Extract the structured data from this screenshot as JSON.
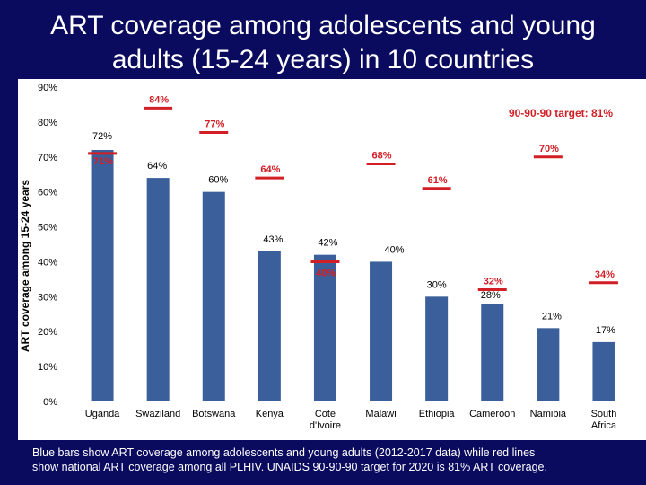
{
  "title_line1": "ART coverage among adolescents and young",
  "title_line2": "adults (15-24 years) in 10 countries",
  "caption_line1": "Blue bars show ART coverage among adolescents and young adults (2012-2017 data) while red lines",
  "caption_line2": "show national ART coverage among all PLHIV. UNAIDS 90-90-90 target for 2020 is 81% ART coverage.",
  "colors": {
    "bar": "#3a5f9a",
    "line": "#d21f26",
    "background": "#0a0a5e"
  },
  "chart_data": {
    "type": "bar",
    "ylabel": "ART coverage among 15-24 years",
    "ylim": [
      0,
      90
    ],
    "yticks": [
      0,
      10,
      20,
      30,
      40,
      50,
      60,
      70,
      80,
      90
    ],
    "categories": [
      "Uganda",
      "Swaziland",
      "Botswana",
      "Kenya",
      "Cote d'Ivoire",
      "Malawi",
      "Ethiopia",
      "Cameroon",
      "Namibia",
      "South Africa"
    ],
    "series": [
      {
        "values": [
          72,
          64,
          60,
          43,
          42,
          40,
          30,
          28,
          21,
          17
        ]
      },
      {
        "values": [
          71,
          84,
          77,
          64,
          40,
          68,
          61,
          32,
          70,
          34
        ]
      }
    ],
    "bar_labels": [
      "72%",
      "64%",
      "60%",
      "43%",
      "42%",
      "40%",
      "30%",
      "28%",
      "21%",
      "17%"
    ],
    "line_labels": [
      "71%",
      "84%",
      "77%",
      "64%",
      "40%",
      "68%",
      "61%",
      "32%",
      "70%",
      "34%"
    ],
    "target_label": "90-90-90 target: 81%",
    "grid": false
  }
}
